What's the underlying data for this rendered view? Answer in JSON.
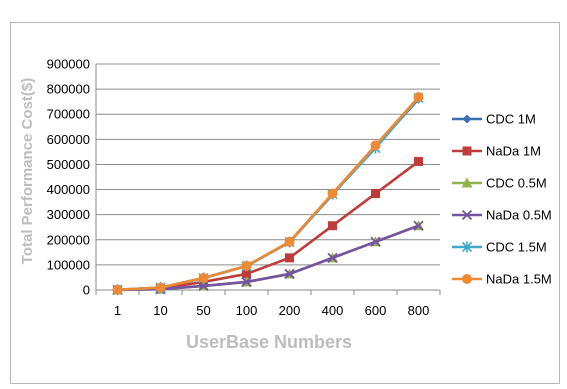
{
  "chart_data": {
    "type": "line",
    "title": "",
    "xlabel": "UserBase Numbers",
    "ylabel": "Total Performance Cost($)",
    "categories": [
      "1",
      "10",
      "50",
      "100",
      "200",
      "400",
      "600",
      "800"
    ],
    "yticks": [
      "0",
      "100000",
      "200000",
      "300000",
      "400000",
      "500000",
      "600000",
      "700000",
      "800000",
      "900000"
    ],
    "ylim": [
      0,
      900000
    ],
    "grid": true,
    "legend_position": "right",
    "series": [
      {
        "name": "CDC 1M",
        "color": "#3d6fb6",
        "marker": "diamond",
        "values": [
          950,
          9500,
          47500,
          95000,
          190000,
          380000,
          570000,
          760000
        ]
      },
      {
        "name": "NaDa 1M",
        "color": "#be3d3a",
        "marker": "square",
        "values": [
          640,
          6400,
          32000,
          64000,
          128000,
          256000,
          384000,
          512000
        ]
      },
      {
        "name": "CDC 0.5M",
        "color": "#92b250",
        "marker": "triangle",
        "values": [
          320,
          3200,
          16000,
          32000,
          64000,
          128000,
          192000,
          256000
        ]
      },
      {
        "name": "NaDa 0.5M",
        "color": "#7453a0",
        "marker": "x",
        "values": [
          320,
          3200,
          16000,
          32000,
          64000,
          128000,
          192000,
          256000
        ]
      },
      {
        "name": "CDC 1.5M",
        "color": "#3fa9c6",
        "marker": "star",
        "values": [
          955,
          9550,
          47750,
          95500,
          191000,
          382000,
          565000,
          765000
        ]
      },
      {
        "name": "NaDa 1.5M",
        "color": "#ee8a33",
        "marker": "circle",
        "values": [
          960,
          9600,
          48000,
          96000,
          192000,
          384000,
          576000,
          768000
        ]
      }
    ]
  }
}
